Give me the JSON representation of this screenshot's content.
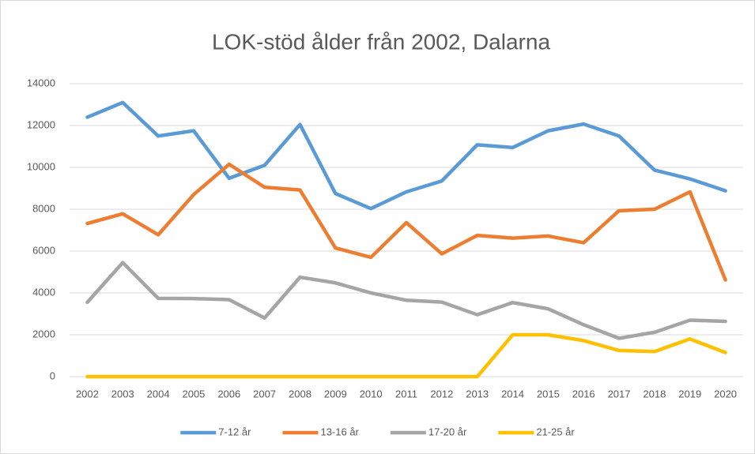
{
  "chart_data": {
    "type": "line",
    "title": "LOK-stöd ålder från 2002, Dalarna",
    "categories": [
      "2002",
      "2003",
      "2004",
      "2005",
      "2006",
      "2007",
      "2008",
      "2009",
      "2010",
      "2011",
      "2012",
      "2013",
      "2014",
      "2015",
      "2016",
      "2017",
      "2018",
      "2019",
      "2020"
    ],
    "series": [
      {
        "name": "7-12 år",
        "color": "#5b9bd5",
        "values": [
          12400,
          13100,
          11500,
          11750,
          9480,
          10100,
          12050,
          8750,
          8030,
          8830,
          9350,
          11080,
          10950,
          11750,
          12070,
          11500,
          9870,
          9450,
          8880
        ]
      },
      {
        "name": "13-16 år",
        "color": "#ed7d31",
        "values": [
          7320,
          7780,
          6780,
          8700,
          10150,
          9050,
          8920,
          6150,
          5700,
          7360,
          5870,
          6750,
          6620,
          6720,
          6400,
          7930,
          8000,
          8830,
          4620
        ]
      },
      {
        "name": "17-20 år",
        "color": "#a5a5a5",
        "values": [
          3550,
          5450,
          3740,
          3730,
          3680,
          2800,
          4750,
          4480,
          4000,
          3650,
          3560,
          2960,
          3540,
          3240,
          2480,
          1830,
          2120,
          2700,
          2640
        ]
      },
      {
        "name": "21-25 år",
        "color": "#ffc000",
        "values": [
          0,
          0,
          0,
          0,
          0,
          0,
          0,
          0,
          0,
          0,
          0,
          0,
          2000,
          2000,
          1720,
          1250,
          1200,
          1800,
          1150
        ]
      }
    ],
    "ylim": [
      0,
      14000
    ],
    "yticks": [
      0,
      2000,
      4000,
      6000,
      8000,
      10000,
      12000,
      14000
    ],
    "grid": true,
    "legend": "bottom"
  }
}
